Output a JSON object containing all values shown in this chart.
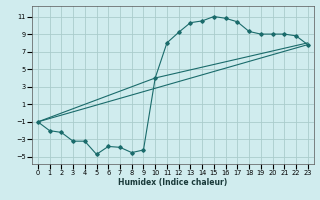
{
  "xlabel": "Humidex (Indice chaleur)",
  "ylabel": "",
  "bg_color": "#d0ecee",
  "grid_color": "#aacccc",
  "line_color": "#1a6b6b",
  "xlim": [
    -0.5,
    23.5
  ],
  "ylim": [
    -5.8,
    12.2
  ],
  "xticks": [
    0,
    1,
    2,
    3,
    4,
    5,
    6,
    7,
    8,
    9,
    10,
    11,
    12,
    13,
    14,
    15,
    16,
    17,
    18,
    19,
    20,
    21,
    22,
    23
  ],
  "yticks": [
    -5,
    -3,
    -1,
    1,
    3,
    5,
    7,
    9,
    11
  ],
  "curve1_x": [
    0,
    1,
    2,
    3,
    4,
    5,
    6,
    7,
    8,
    9,
    10,
    11,
    12,
    13,
    14,
    15,
    16,
    17,
    18,
    19,
    20,
    21,
    22,
    23
  ],
  "curve1_y": [
    -1.0,
    -2.0,
    -2.2,
    -3.2,
    -3.2,
    -4.7,
    -3.8,
    -3.9,
    -4.5,
    -4.2,
    4.0,
    8.0,
    9.2,
    10.3,
    10.5,
    11.0,
    10.8,
    10.4,
    9.3,
    9.0,
    9.0,
    9.0,
    8.8,
    7.8
  ],
  "curve2_x": [
    0,
    10,
    23
  ],
  "curve2_y": [
    -1.0,
    4.0,
    8.0
  ],
  "curve3_x": [
    0,
    23
  ],
  "curve3_y": [
    -1.0,
    7.8
  ],
  "xlabel_fontsize": 5.5,
  "tick_fontsize": 4.8
}
